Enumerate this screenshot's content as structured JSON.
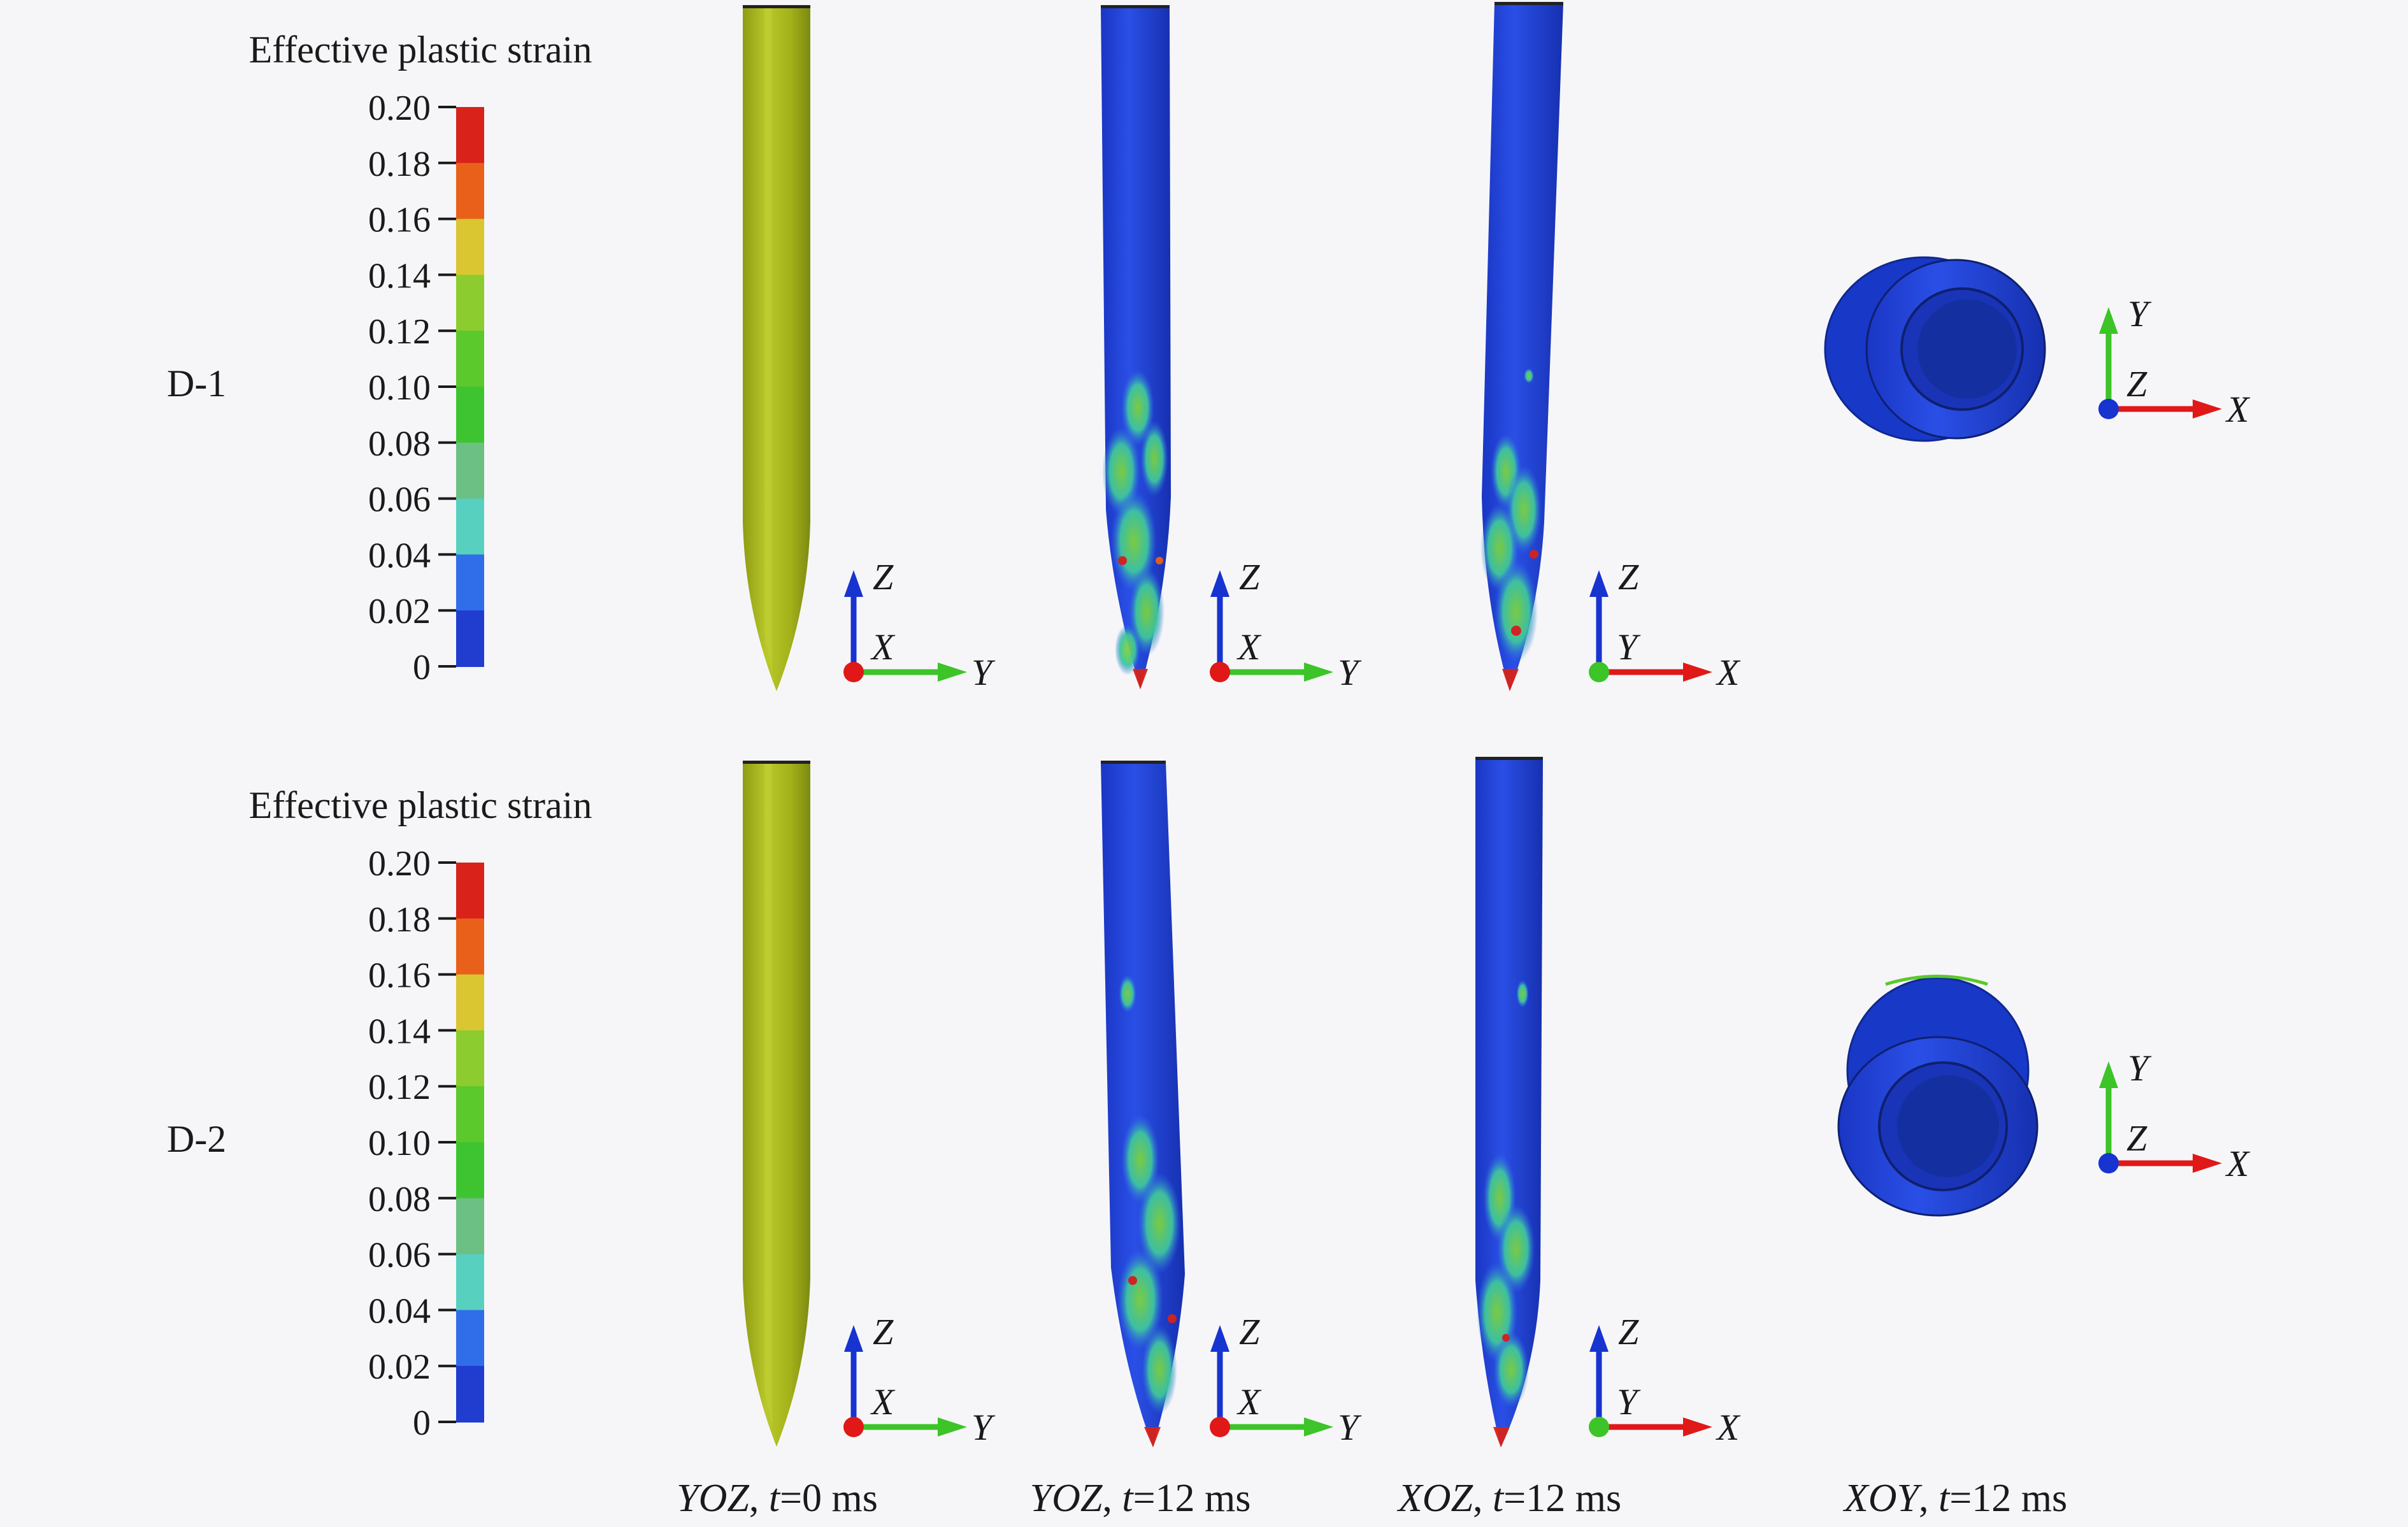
{
  "colorbar": {
    "title": "Effective plastic strain",
    "tick_labels": [
      "0.20",
      "0.18",
      "0.16",
      "0.14",
      "0.12",
      "0.10",
      "0.08",
      "0.06",
      "0.04",
      "0.02",
      "0"
    ],
    "colors": [
      "#d8221a",
      "#e9601a",
      "#d9c630",
      "#8ccc2e",
      "#5bc82c",
      "#3ec430",
      "#6cc083",
      "#58d0bf",
      "#2f6ee8",
      "#203dd0"
    ]
  },
  "rows": [
    {
      "label": "D-1"
    },
    {
      "label": "D-2"
    }
  ],
  "axis_triads": [
    {
      "up": "Z",
      "center": "X",
      "right": "Y",
      "up_color": "#1733d0",
      "right_color": "#3cc428",
      "center_color": "#e01818"
    },
    {
      "up": "Z",
      "center": "X",
      "right": "Y",
      "up_color": "#1733d0",
      "right_color": "#3cc428",
      "center_color": "#e01818"
    },
    {
      "up": "Z",
      "center": "Y",
      "right": "X",
      "up_color": "#1733d0",
      "right_color": "#e01818",
      "center_color": "#3cc428"
    },
    {
      "up": "Y",
      "center": "Z",
      "right": "X",
      "up_color": "#3cc428",
      "right_color": "#e01818",
      "center_color": "#1733d0"
    }
  ],
  "captions": [
    {
      "plane": "YOZ",
      "sep": ", ",
      "t": "t",
      "value": "=0 ms"
    },
    {
      "plane": "YOZ",
      "sep": ", ",
      "t": "t",
      "value": "=12 ms"
    },
    {
      "plane": "XOZ",
      "sep": ", ",
      "t": "t",
      "value": "=12 ms"
    },
    {
      "plane": "XOY",
      "sep": ", ",
      "t": "t",
      "value": "=12 ms"
    }
  ],
  "colors": {
    "undeformed": "#a8b618",
    "deformed": "#1f40d8",
    "deformed_dark": "#1530a8",
    "text": "#1a1a1a"
  }
}
